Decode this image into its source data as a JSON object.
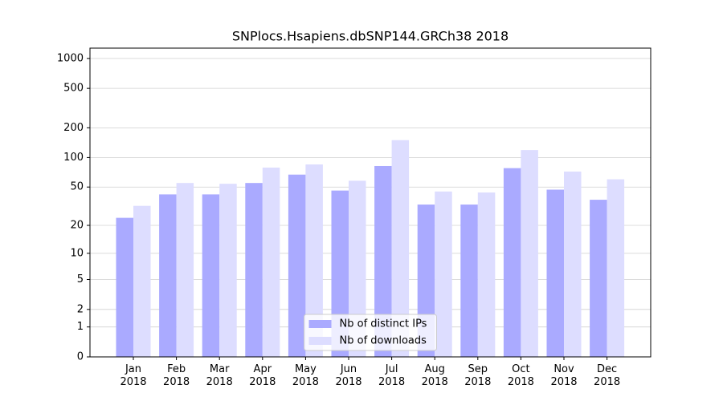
{
  "chart_data": {
    "type": "bar",
    "title": "SNPlocs.Hsapiens.dbSNP144.GRCh38 2018",
    "categories": [
      "Jan 2018",
      "Feb 2018",
      "Mar 2018",
      "Apr 2018",
      "May 2018",
      "Jun 2018",
      "Jul 2018",
      "Aug 2018",
      "Sep 2018",
      "Oct 2018",
      "Nov 2018",
      "Dec 2018"
    ],
    "series": [
      {
        "name": "Nb of distinct IPs",
        "color": "#aaaaff",
        "values": [
          24,
          42,
          42,
          55,
          67,
          46,
          82,
          33,
          33,
          78,
          47,
          37
        ]
      },
      {
        "name": "Nb of downloads",
        "color": "#ddddff",
        "values": [
          32,
          55,
          54,
          79,
          85,
          58,
          150,
          45,
          44,
          119,
          72,
          60
        ]
      }
    ],
    "yscale": "log1p",
    "ylim": [
      0,
      1270
    ],
    "yticks": [
      0,
      1,
      2,
      5,
      10,
      20,
      50,
      100,
      200,
      500,
      1000
    ],
    "grid": true,
    "legend": "lower center"
  }
}
